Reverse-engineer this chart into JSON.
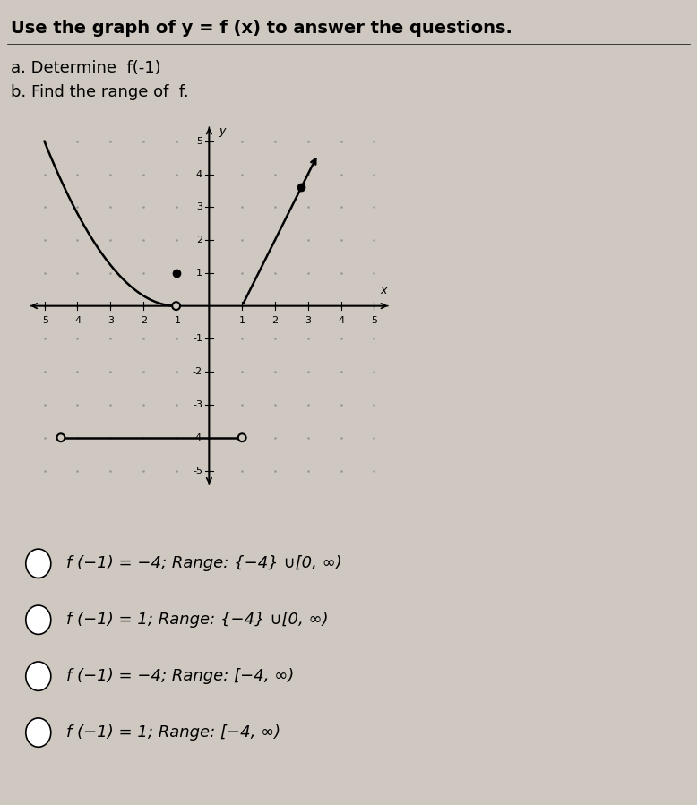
{
  "title": "Use the graph of y = f (x) to answer the questions.",
  "subtitle_a": "a. Determine  f(-1)",
  "subtitle_b": "b. Find the range of  f.",
  "background_color": "#cec8c0",
  "xlim": [
    -5.5,
    5.5
  ],
  "ylim": [
    -5.5,
    5.5
  ],
  "xlabel": "x",
  "ylabel": "y",
  "curve_parabola_end_x": -1.0,
  "curve_parabola_end_y": 0.0,
  "filled_dot1_x": -1.0,
  "filled_dot1_y": 1.0,
  "hline_x1": -4.5,
  "hline_x2": 1.0,
  "hline_y": -4.0,
  "line2_x1": 1.0,
  "line2_y1": 0.0,
  "line2_x2": 3.3,
  "line2_y2": 4.6,
  "filled_dot2_x": 2.8,
  "filled_dot2_y": 3.6,
  "curve_color": "#000000",
  "choice1": "f (−1) = −4; Range: {−4} ∪[0, ∞)",
  "choice2": "f (−1) = 1; Range: {−4} ∪[0, ∞)",
  "choice3": "f (−1) = −4; Range: [−4, ∞)",
  "choice4": "f (−1) = 1; Range: [−4, ∞)",
  "choice_fontsize": 13,
  "title_fontsize": 14,
  "subtitle_fontsize": 13
}
